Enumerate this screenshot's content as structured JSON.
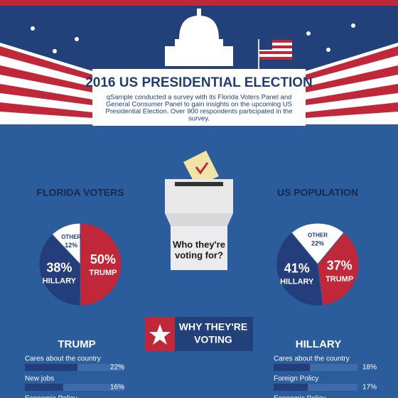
{
  "header": {
    "title": "2016 US PRESIDENTIAL ELECTION",
    "text": [
      "qSample conducted a survey with its Florida Voters Panel and",
      "General Consumer Panel to gain insights on the upcoming US",
      "Presidential Election. Over 900 respondents participated in the",
      "survey."
    ],
    "ballot": [
      "Who they're",
      "voting for?"
    ],
    "banner": [
      "WHY THEY'RE",
      "VOTING"
    ]
  },
  "chart_data": [
    {
      "type": "pie",
      "title": "FLORIDA VOTERS",
      "categories": [
        "TRUMP",
        "HILLARY",
        "OTHER"
      ],
      "values": [
        50,
        38,
        12
      ],
      "value_labels": [
        "50%",
        "38%",
        "12%"
      ],
      "colors": [
        "#c0283a",
        "#233e7a",
        "#ffffff"
      ]
    },
    {
      "type": "pie",
      "title": "US POPULATION",
      "categories": [
        "OTHER",
        "TRUMP",
        "HILLARY"
      ],
      "values": [
        22,
        37,
        41
      ],
      "value_labels": [
        "22%",
        "37%",
        "41%"
      ],
      "colors": [
        "#ffffff",
        "#c0283a",
        "#233e7a"
      ]
    },
    {
      "type": "hbar",
      "title": "TRUMP",
      "categories": [
        "Cares about the country",
        "New jobs",
        "Economic Policy"
      ],
      "values": [
        22,
        16,
        null
      ],
      "value_labels": [
        "22%",
        "16%",
        null
      ],
      "color": "#233e7a",
      "xlim": [
        0,
        100
      ]
    },
    {
      "type": "hbar",
      "title": "HILLARY",
      "categories": [
        "Cares about the country",
        "Foreign Policy",
        "Economic Policy"
      ],
      "values": [
        18,
        17,
        null
      ],
      "value_labels": [
        "18%",
        "17%",
        null
      ],
      "color": "#233e7a",
      "xlim": [
        0,
        100
      ]
    }
  ]
}
